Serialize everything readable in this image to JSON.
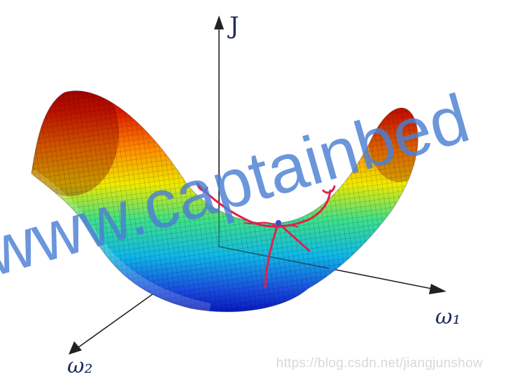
{
  "axes": {
    "vertical_label": "J",
    "right_label": "ω₁",
    "left_label": "ω₂"
  },
  "watermark_text": "www.captainbed",
  "source_watermark": "https://blog.csdn.net/jiangjunshow",
  "colors": {
    "surface_high": "#b30000",
    "surface_mid": "#f2e600",
    "surface_low": "#0000c8",
    "path": "#e0204a",
    "watermark": "#4a7fd4"
  }
}
